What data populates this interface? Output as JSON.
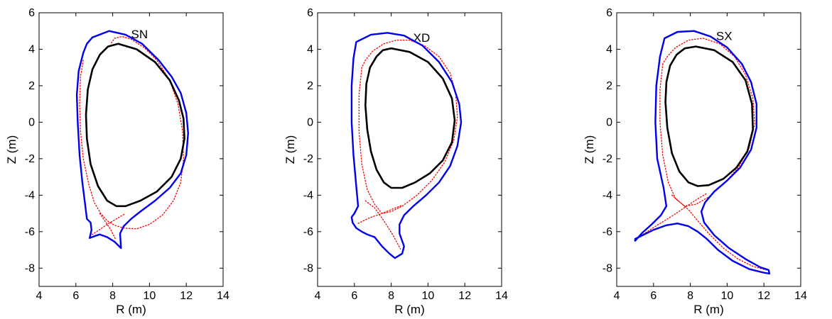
{
  "chart_data": [
    {
      "type": "line",
      "title": "SN",
      "xlabel": "R (m)",
      "ylabel": "Z (m)",
      "xlim": [
        4,
        14
      ],
      "ylim": [
        -9,
        6
      ],
      "xticks": [
        "4",
        "6",
        "8",
        "10",
        "12",
        "14"
      ],
      "yticks": [
        "-8",
        "-6",
        "-4",
        "-2",
        "0",
        "2",
        "4",
        "6"
      ],
      "grid": false,
      "colors": {
        "wall": "#0000ee",
        "separatrix": "#ff0000",
        "lcfs": "#000000"
      },
      "series": [
        {
          "role": "wall",
          "color": "#0000ee",
          "style": "solid",
          "closed": true,
          "x": [
            6.9,
            7.8,
            8.7,
            9.6,
            10.5,
            11.2,
            11.7,
            12.0,
            12.1,
            12.0,
            11.7,
            11.1,
            10.3,
            9.5,
            9.0,
            8.6,
            8.4,
            8.45,
            8.1,
            7.7,
            7.3,
            7.0,
            6.75,
            6.85,
            6.8,
            6.6,
            6.5,
            6.35,
            6.2,
            6.1,
            6.05,
            6.15,
            6.4,
            6.6,
            6.9
          ],
          "y": [
            4.65,
            5.0,
            4.8,
            4.3,
            3.4,
            2.5,
            1.6,
            0.5,
            -0.6,
            -1.8,
            -2.8,
            -3.6,
            -4.3,
            -4.9,
            -5.3,
            -5.7,
            -6.1,
            -6.9,
            -6.55,
            -6.3,
            -6.15,
            -6.25,
            -6.35,
            -5.9,
            -5.5,
            -5.3,
            -4.5,
            -3.3,
            -1.8,
            0.0,
            1.5,
            2.8,
            3.8,
            4.3,
            4.65
          ]
        },
        {
          "role": "separatrix",
          "color": "#ff0000",
          "style": "dotted",
          "closed": false,
          "x": [
            6.4,
            6.25,
            6.2,
            6.25,
            6.4,
            6.7,
            7.0,
            7.35,
            7.7,
            8.1,
            8.6,
            9.3,
            10.0,
            10.7,
            11.3,
            11.7,
            11.85,
            11.8,
            11.55,
            11.1,
            10.4,
            9.7,
            9.0,
            8.5,
            8.1,
            7.9
          ],
          "y": [
            3.4,
            2.5,
            1.0,
            -0.5,
            -2.0,
            -3.4,
            -4.4,
            -5.0,
            -5.4,
            -5.65,
            -5.8,
            -5.85,
            -5.6,
            -5.1,
            -4.3,
            -3.3,
            -2.0,
            -0.5,
            1.0,
            2.3,
            3.4,
            4.1,
            4.55,
            4.7,
            4.6,
            4.3
          ]
        },
        {
          "role": "separatrix-legs",
          "color": "#ff0000",
          "style": "dotted",
          "closed": false,
          "x": [
            6.75,
            7.2,
            7.7,
            8.2,
            8.7
          ],
          "y": [
            -6.25,
            -5.95,
            -5.6,
            -5.3,
            -5.0
          ]
        },
        {
          "role": "separatrix-legs-2",
          "color": "#ff0000",
          "style": "dotted",
          "closed": false,
          "x": [
            7.3,
            7.6,
            7.9,
            8.15
          ],
          "y": [
            -5.0,
            -5.45,
            -5.9,
            -6.4
          ]
        },
        {
          "role": "lcfs",
          "color": "#000000",
          "style": "solid",
          "closed": true,
          "x": [
            8.3,
            9.3,
            10.3,
            11.1,
            11.6,
            11.85,
            11.9,
            11.7,
            11.2,
            10.4,
            9.5,
            8.7,
            8.2,
            7.7,
            7.2,
            6.8,
            6.6,
            6.55,
            6.65,
            6.9,
            7.3,
            7.75,
            8.3
          ],
          "y": [
            4.3,
            4.0,
            3.3,
            2.3,
            1.2,
            0.2,
            -0.9,
            -2.0,
            -3.0,
            -3.8,
            -4.3,
            -4.6,
            -4.6,
            -4.3,
            -3.5,
            -2.3,
            -0.9,
            0.4,
            1.8,
            2.9,
            3.7,
            4.15,
            4.3
          ]
        }
      ]
    },
    {
      "type": "line",
      "title": "XD",
      "xlabel": "R (m)",
      "ylabel": "Z (m)",
      "xlim": [
        4,
        14
      ],
      "ylim": [
        -9,
        6
      ],
      "xticks": [
        "4",
        "6",
        "8",
        "10",
        "12",
        "14"
      ],
      "yticks": [
        "-8",
        "-6",
        "-4",
        "-2",
        "0",
        "2",
        "4",
        "6"
      ],
      "grid": false,
      "colors": {
        "wall": "#0000ee",
        "separatrix": "#ff0000",
        "lcfs": "#000000"
      },
      "series": [
        {
          "role": "wall",
          "color": "#0000ee",
          "style": "solid",
          "closed": true,
          "x": [
            6.1,
            6.9,
            7.8,
            8.7,
            9.7,
            10.6,
            11.3,
            11.7,
            11.8,
            11.6,
            11.2,
            10.6,
            9.9,
            9.2,
            8.7,
            8.45,
            8.45,
            8.7,
            8.6,
            8.2,
            7.9,
            7.5,
            7.1,
            6.7,
            6.4,
            6.1,
            5.9,
            5.85,
            6.0,
            6.2,
            6.1,
            5.95,
            5.85,
            5.85,
            5.95,
            6.1
          ],
          "y": [
            4.4,
            4.8,
            4.9,
            4.75,
            4.2,
            3.3,
            2.2,
            1.0,
            0.0,
            -1.3,
            -2.4,
            -3.3,
            -4.0,
            -4.6,
            -5.1,
            -5.6,
            -6.1,
            -6.8,
            -7.2,
            -7.45,
            -7.2,
            -6.8,
            -6.3,
            -6.15,
            -6.0,
            -5.8,
            -5.5,
            -5.2,
            -5.0,
            -4.6,
            -3.5,
            -1.8,
            0.0,
            2.0,
            3.5,
            4.4
          ]
        },
        {
          "role": "separatrix",
          "color": "#ff0000",
          "style": "dotted",
          "closed": false,
          "x": [
            6.4,
            6.25,
            6.25,
            6.4,
            6.7,
            7.1,
            7.5,
            8.0,
            8.6,
            9.4,
            10.2,
            10.9,
            11.4,
            11.6,
            11.5,
            11.2,
            10.6,
            9.8,
            9.0,
            8.3,
            7.6,
            7.0,
            6.6,
            6.4
          ],
          "y": [
            3.0,
            1.5,
            -0.5,
            -2.3,
            -3.7,
            -4.5,
            -5.0,
            -4.9,
            -4.6,
            -4.0,
            -3.2,
            -2.2,
            -1.0,
            0.3,
            1.6,
            2.7,
            3.6,
            4.2,
            4.5,
            4.5,
            4.3,
            3.9,
            3.4,
            3.0
          ]
        },
        {
          "role": "separatrix-legs",
          "color": "#ff0000",
          "style": "dotted",
          "closed": false,
          "x": [
            6.2,
            6.8,
            7.5,
            8.1,
            8.6
          ],
          "y": [
            -5.55,
            -5.25,
            -5.0,
            -4.75,
            -4.55
          ]
        },
        {
          "role": "separatrix-legs-2",
          "color": "#ff0000",
          "style": "dotted",
          "closed": false,
          "x": [
            6.6,
            7.1,
            7.6,
            8.1,
            8.5
          ],
          "y": [
            -4.3,
            -4.7,
            -5.4,
            -6.2,
            -6.95
          ]
        },
        {
          "role": "lcfs",
          "color": "#000000",
          "style": "solid",
          "closed": true,
          "x": [
            8.0,
            9.0,
            10.0,
            10.8,
            11.3,
            11.45,
            11.3,
            10.8,
            10.1,
            9.3,
            8.6,
            8.0,
            7.6,
            7.2,
            6.9,
            6.7,
            6.6,
            6.65,
            6.85,
            7.2,
            7.55,
            8.0
          ],
          "y": [
            4.05,
            3.85,
            3.3,
            2.4,
            1.3,
            0.1,
            -1.1,
            -2.1,
            -2.8,
            -3.3,
            -3.6,
            -3.6,
            -3.3,
            -2.6,
            -1.6,
            -0.4,
            0.9,
            2.1,
            3.0,
            3.6,
            3.95,
            4.05
          ]
        }
      ]
    },
    {
      "type": "line",
      "title": "SX",
      "xlabel": "R (m)",
      "ylabel": "Z (m)",
      "xlim": [
        4,
        14
      ],
      "ylim": [
        -9,
        6
      ],
      "xticks": [
        "4",
        "6",
        "8",
        "10",
        "12",
        "14"
      ],
      "yticks": [
        "-8",
        "-6",
        "-4",
        "-2",
        "0",
        "2",
        "4",
        "6"
      ],
      "grid": false,
      "colors": {
        "wall": "#0000ee",
        "separatrix": "#ff0000",
        "lcfs": "#000000"
      },
      "series": [
        {
          "role": "wall",
          "color": "#0000ee",
          "style": "solid",
          "closed": true,
          "x": [
            6.6,
            7.3,
            8.2,
            9.1,
            10.0,
            10.8,
            11.3,
            11.6,
            11.6,
            11.3,
            10.7,
            10.0,
            9.3,
            8.8,
            8.6,
            8.75,
            9.3,
            10.1,
            11.0,
            11.8,
            12.25,
            12.3,
            12.0,
            11.2,
            10.3,
            9.5,
            8.9,
            8.4,
            7.9,
            7.3,
            6.7,
            6.0,
            5.4,
            5.0,
            5.0,
            5.4,
            5.9,
            6.4,
            6.7,
            6.55,
            6.2,
            6.1,
            6.15,
            6.35,
            6.6
          ],
          "y": [
            4.6,
            4.95,
            5.0,
            4.7,
            4.1,
            3.2,
            2.2,
            1.0,
            -0.3,
            -1.5,
            -2.5,
            -3.2,
            -3.8,
            -4.4,
            -4.9,
            -5.5,
            -6.2,
            -6.9,
            -7.5,
            -7.95,
            -8.1,
            -8.3,
            -8.25,
            -8.05,
            -7.6,
            -7.0,
            -6.4,
            -6.0,
            -5.7,
            -5.55,
            -5.65,
            -5.9,
            -6.2,
            -6.4,
            -6.5,
            -6.05,
            -5.6,
            -5.1,
            -4.6,
            -3.6,
            -2.0,
            0.0,
            2.0,
            3.6,
            4.6
          ]
        },
        {
          "role": "separatrix",
          "color": "#ff0000",
          "style": "dotted",
          "closed": false,
          "x": [
            6.5,
            6.35,
            6.35,
            6.5,
            6.8,
            7.2,
            7.7,
            8.3,
            9.0,
            9.8,
            10.6,
            11.2,
            11.5,
            11.4,
            11.0,
            10.4,
            9.6,
            8.7,
            7.9,
            7.2,
            6.75,
            6.5
          ],
          "y": [
            3.2,
            1.8,
            0.0,
            -1.8,
            -3.3,
            -4.2,
            -4.6,
            -4.5,
            -4.1,
            -3.4,
            -2.5,
            -1.4,
            -0.1,
            1.3,
            2.6,
            3.6,
            4.3,
            4.6,
            4.5,
            4.1,
            3.6,
            3.2
          ]
        },
        {
          "role": "separatrix-legs",
          "color": "#ff0000",
          "style": "dotted",
          "closed": false,
          "x": [
            5.05,
            5.8,
            6.6,
            7.3,
            7.8,
            8.4,
            8.9
          ],
          "y": [
            -6.4,
            -5.9,
            -5.4,
            -4.95,
            -4.6,
            -4.2,
            -3.9
          ]
        },
        {
          "role": "separatrix-legs-2",
          "color": "#ff0000",
          "style": "dotted",
          "closed": false,
          "x": [
            7.0,
            7.4,
            7.9,
            8.4,
            9.0,
            9.8,
            10.6,
            11.4,
            12.1
          ],
          "y": [
            -4.0,
            -4.35,
            -4.8,
            -5.4,
            -6.1,
            -6.9,
            -7.5,
            -7.9,
            -8.1
          ]
        },
        {
          "role": "lcfs",
          "color": "#000000",
          "style": "solid",
          "closed": true,
          "x": [
            8.3,
            9.3,
            10.3,
            11.0,
            11.35,
            11.4,
            11.1,
            10.5,
            9.8,
            9.0,
            8.4,
            7.9,
            7.4,
            7.0,
            6.75,
            6.65,
            6.7,
            6.9,
            7.25,
            7.7,
            8.3
          ],
          "y": [
            4.15,
            3.95,
            3.3,
            2.3,
            1.0,
            -0.4,
            -1.6,
            -2.5,
            -3.1,
            -3.45,
            -3.5,
            -3.3,
            -2.7,
            -1.7,
            -0.3,
            1.1,
            2.2,
            3.1,
            3.7,
            4.05,
            4.15
          ]
        }
      ]
    }
  ]
}
